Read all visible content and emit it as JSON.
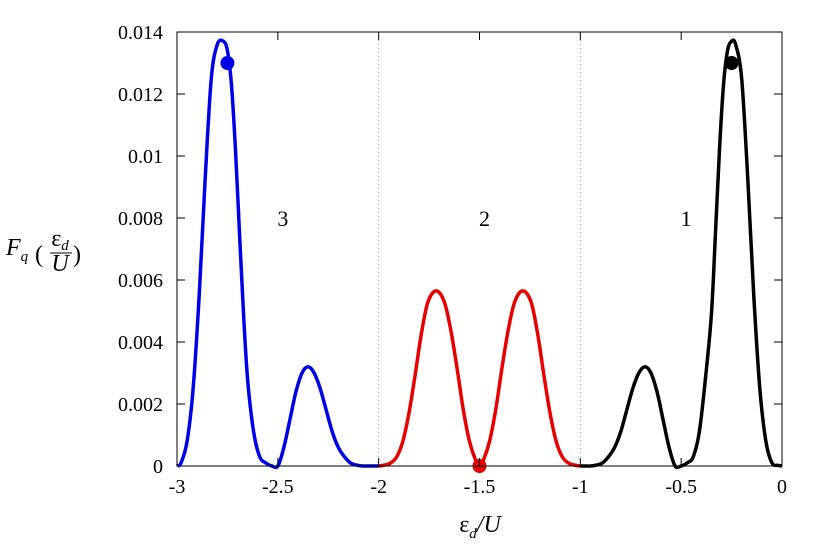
{
  "chart_data": {
    "type": "line",
    "xlabel": {
      "symbol": "ε",
      "sub": "d",
      "rest": "/U"
    },
    "ylabel": {
      "name": "F",
      "sub": "q",
      "frac_num": "ε",
      "frac_num_sub": "d",
      "frac_den": "U"
    },
    "xlim": [
      -3,
      0
    ],
    "ylim": [
      0,
      0.014
    ],
    "x_ticks": [
      -3,
      -2.5,
      -2,
      -1.5,
      -1,
      -0.5,
      0
    ],
    "x_tick_labels": [
      "-3",
      "-2.5",
      "-2",
      "-1.5",
      "-1",
      "-0.5",
      "0"
    ],
    "y_ticks": [
      0,
      0.002,
      0.004,
      0.006,
      0.008,
      0.01,
      0.012,
      0.014
    ],
    "y_tick_labels": [
      "0",
      "0.002",
      "0.004",
      "0.006",
      "0.008",
      "0.01",
      "0.012",
      "0.014"
    ],
    "grid": false,
    "vertical_dotted_lines_at": [
      -2,
      -1
    ],
    "region_labels": [
      {
        "text": "3",
        "x": -2.5,
        "y": 0.008
      },
      {
        "text": "2",
        "x": -1.5,
        "y": 0.008
      },
      {
        "text": "1",
        "x": -0.5,
        "y": 0.008
      }
    ],
    "series": [
      {
        "color": "#0000e6",
        "x": [
          -3.0,
          -2.98,
          -2.95,
          -2.92,
          -2.89,
          -2.86,
          -2.83,
          -2.8,
          -2.77,
          -2.75,
          -2.73,
          -2.71,
          -2.69,
          -2.67,
          -2.65,
          -2.62,
          -2.59,
          -2.56,
          -2.53,
          -2.5,
          -2.47,
          -2.44,
          -2.41,
          -2.38,
          -2.35,
          -2.32,
          -2.29,
          -2.26,
          -2.23,
          -2.2,
          -2.17,
          -2.14,
          -2.11,
          -2.08,
          -2.05,
          -2.02,
          -2.0
        ],
        "values": [
          0.0,
          0.0001,
          0.0008,
          0.0025,
          0.0055,
          0.0093,
          0.0125,
          0.0136,
          0.0137,
          0.0134,
          0.0123,
          0.0102,
          0.0075,
          0.0049,
          0.0028,
          0.0011,
          0.0003,
          0.0001,
          0.0,
          0.0,
          0.0006,
          0.0015,
          0.0024,
          0.003,
          0.0032,
          0.003,
          0.0025,
          0.0018,
          0.0011,
          0.0006,
          0.0003,
          0.0001,
          3e-05,
          0.0,
          0.0,
          0.0,
          0.0
        ]
      },
      {
        "color": "#e60000",
        "x": [
          -2.0,
          -1.97,
          -1.94,
          -1.91,
          -1.88,
          -1.85,
          -1.82,
          -1.79,
          -1.76,
          -1.73,
          -1.7,
          -1.67,
          -1.64,
          -1.61,
          -1.58,
          -1.55,
          -1.52,
          -1.5,
          -1.48,
          -1.45,
          -1.42,
          -1.39,
          -1.36,
          -1.33,
          -1.3,
          -1.27,
          -1.24,
          -1.21,
          -1.18,
          -1.15,
          -1.12,
          -1.09,
          -1.06,
          -1.03,
          -1.0
        ],
        "values": [
          0.0,
          3e-05,
          0.0001,
          0.0003,
          0.0008,
          0.0017,
          0.0029,
          0.0042,
          0.0052,
          0.0056,
          0.0056,
          0.0052,
          0.0043,
          0.0031,
          0.0018,
          0.0008,
          0.0002,
          0.0,
          0.0002,
          0.0008,
          0.0018,
          0.0031,
          0.0043,
          0.0052,
          0.0056,
          0.0056,
          0.0052,
          0.0042,
          0.0029,
          0.0017,
          0.0008,
          0.0003,
          0.0001,
          3e-05,
          0.0
        ]
      },
      {
        "color": "#000000",
        "x": [
          -1.0,
          -0.98,
          -0.95,
          -0.92,
          -0.89,
          -0.86,
          -0.83,
          -0.8,
          -0.77,
          -0.74,
          -0.71,
          -0.68,
          -0.65,
          -0.62,
          -0.59,
          -0.56,
          -0.53,
          -0.5,
          -0.47,
          -0.44,
          -0.41,
          -0.38,
          -0.35,
          -0.33,
          -0.31,
          -0.29,
          -0.27,
          -0.25,
          -0.23,
          -0.2,
          -0.17,
          -0.14,
          -0.11,
          -0.08,
          -0.05,
          -0.02,
          0.0
        ],
        "values": [
          0.0,
          0.0,
          0.0,
          3e-05,
          0.0001,
          0.0003,
          0.0006,
          0.0011,
          0.0018,
          0.0025,
          0.003,
          0.0032,
          0.003,
          0.0024,
          0.0015,
          0.0006,
          0.0,
          0.0,
          0.0001,
          0.0003,
          0.0011,
          0.0028,
          0.0049,
          0.0075,
          0.0102,
          0.0123,
          0.0134,
          0.0137,
          0.0136,
          0.0125,
          0.0093,
          0.0055,
          0.0025,
          0.0008,
          0.0001,
          2e-05,
          0.0
        ]
      }
    ],
    "markers": [
      {
        "color": "#0000e6",
        "x": -2.75,
        "y": 0.013
      },
      {
        "color": "#e60000",
        "x": -1.5,
        "y": 0.0
      },
      {
        "color": "#000000",
        "x": -0.25,
        "y": 0.013
      }
    ]
  }
}
